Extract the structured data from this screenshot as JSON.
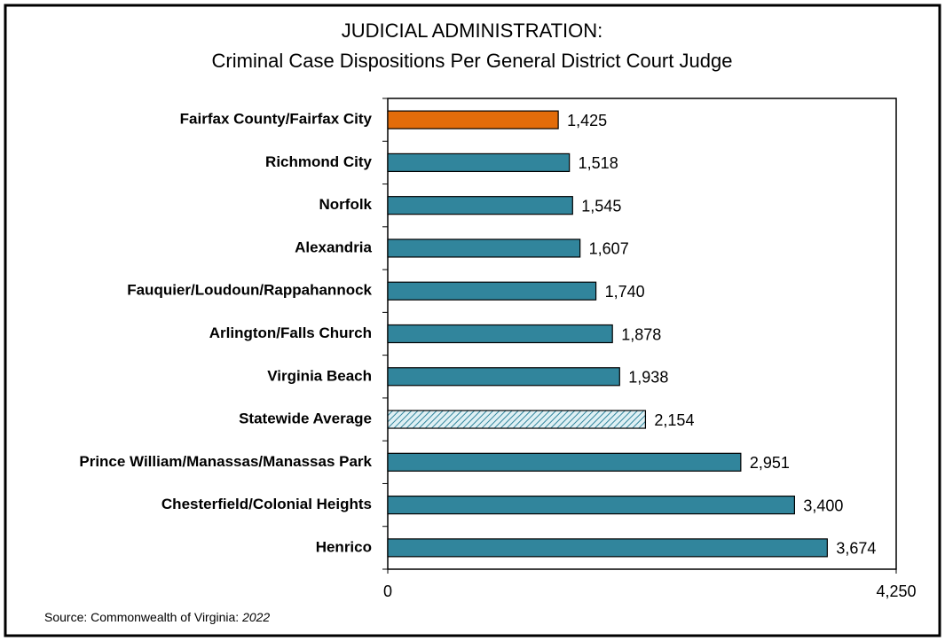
{
  "chart_data": {
    "type": "hbar",
    "title": "JUDICIAL ADMINISTRATION:",
    "subtitle": "Criminal Case Dispositions Per General District Court Judge",
    "categories": [
      "Fairfax County/Fairfax City",
      "Richmond City",
      "Norfolk",
      "Alexandria",
      "Fauquier/Loudoun/Rappahannock",
      "Arlington/Falls Church",
      "Virginia Beach",
      "Statewide Average",
      "Prince William/Manassas/Manassas Park",
      "Chesterfield/Colonial Heights",
      "Henrico"
    ],
    "values": [
      1425,
      1518,
      1545,
      1607,
      1740,
      1878,
      1938,
      2154,
      2951,
      3400,
      3674
    ],
    "value_labels": [
      "1,425",
      "1,518",
      "1,545",
      "1,607",
      "1,740",
      "1,878",
      "1,938",
      "2,154",
      "2,951",
      "3,400",
      "3,674"
    ],
    "colors": [
      "#e36c0a",
      "#31859c",
      "#31859c",
      "#31859c",
      "#31859c",
      "#31859c",
      "#31859c",
      "#b7dde8",
      "#31859c",
      "#31859c",
      "#31859c"
    ],
    "hatched": [
      false,
      false,
      false,
      false,
      false,
      false,
      false,
      true,
      false,
      false,
      false
    ],
    "xlim": [
      0,
      4250
    ],
    "xticks": [
      0,
      {
        "value": 4250,
        "label": "4,250"
      }
    ],
    "source": "Source: Commonwealth of Virginia:",
    "source_year": "2022"
  }
}
